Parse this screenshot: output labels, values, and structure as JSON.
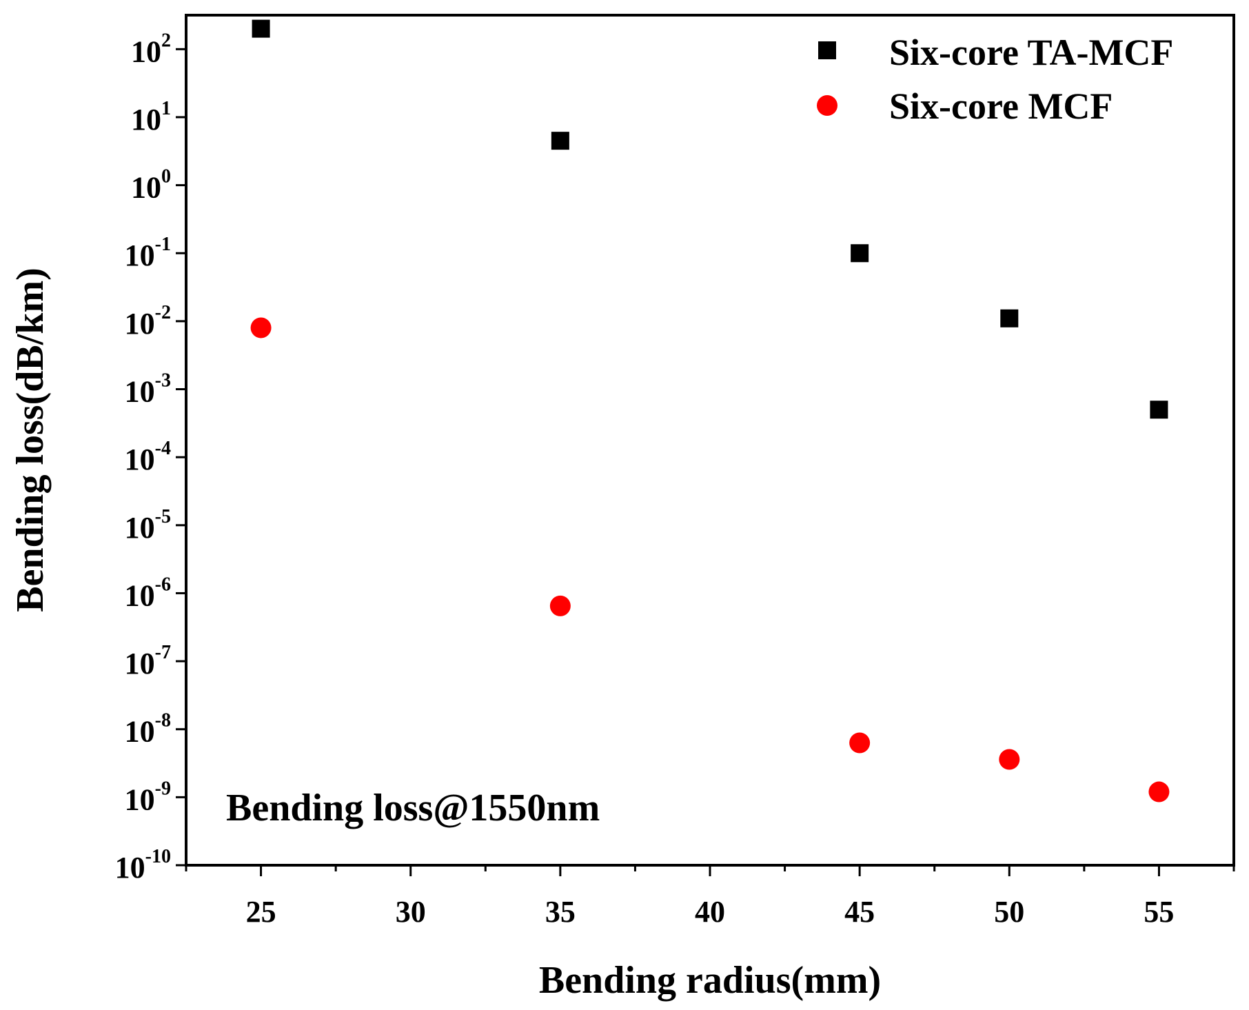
{
  "chart_data": {
    "type": "scatter",
    "title": "",
    "xlabel": "Bending radius(mm)",
    "ylabel": "Bending loss(dB/km)",
    "annotation": "Bending loss@1550nm",
    "xlim": [
      22.5,
      57.5
    ],
    "yscale": "log",
    "ylim_exponents": [
      -10,
      2.5
    ],
    "x_ticks": [
      25,
      30,
      35,
      40,
      45,
      50,
      55
    ],
    "x_tick_labels": [
      "25",
      "30",
      "35",
      "40",
      "45",
      "50",
      "55"
    ],
    "y_ticks": [
      {
        "base": "10",
        "exp": "2",
        "value": 2
      },
      {
        "base": "10",
        "exp": "1",
        "value": 1
      },
      {
        "base": "10",
        "exp": "0",
        "value": 0
      },
      {
        "base": "10",
        "exp": "-1",
        "value": -1
      },
      {
        "base": "10",
        "exp": "-2",
        "value": -2
      },
      {
        "base": "10",
        "exp": "-3",
        "value": -3
      },
      {
        "base": "10",
        "exp": "-4",
        "value": -4
      },
      {
        "base": "10",
        "exp": "-5",
        "value": -5
      },
      {
        "base": "10",
        "exp": "-6",
        "value": -6
      },
      {
        "base": "10",
        "exp": "-7",
        "value": -7
      },
      {
        "base": "10",
        "exp": "-8",
        "value": -8
      },
      {
        "base": "10",
        "exp": "-9",
        "value": -9
      },
      {
        "base": "10",
        "exp": "-10",
        "value": -10
      }
    ],
    "legend_position": "top-right",
    "series": [
      {
        "name": "Six-core TA-MCF",
        "marker": "square",
        "color": "#000000",
        "x": [
          25,
          35,
          45,
          50,
          55
        ],
        "y": [
          200,
          4.5,
          0.1,
          0.011,
          0.0005
        ]
      },
      {
        "name": "Six-core MCF",
        "marker": "circle",
        "color": "#ff0000",
        "x": [
          25,
          35,
          45,
          50,
          55
        ],
        "y": [
          0.008,
          6.5e-07,
          6.3e-09,
          3.6e-09,
          1.2e-09
        ]
      }
    ]
  }
}
